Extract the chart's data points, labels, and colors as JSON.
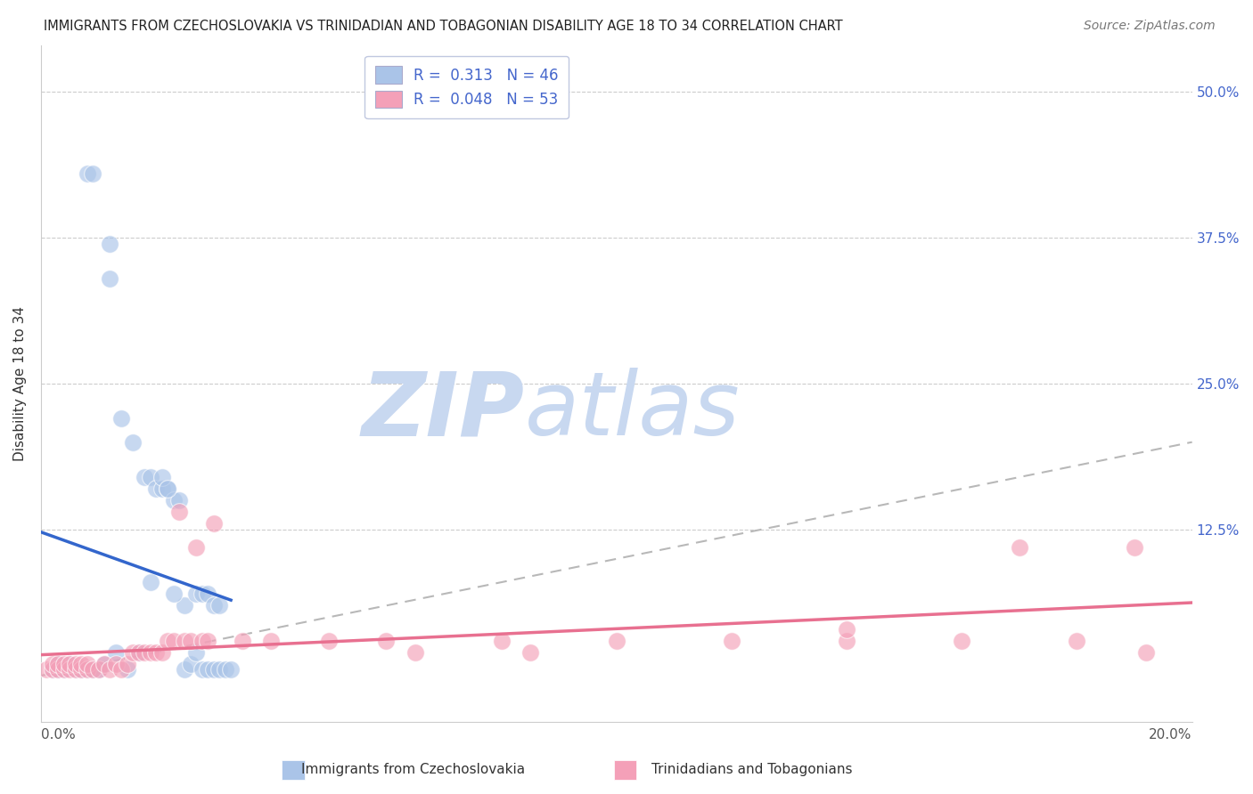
{
  "title": "IMMIGRANTS FROM CZECHOSLOVAKIA VS TRINIDADIAN AND TOBAGONIAN DISABILITY AGE 18 TO 34 CORRELATION CHART",
  "source": "Source: ZipAtlas.com",
  "ylabel": "Disability Age 18 to 34",
  "ytick_labels": [
    "12.5%",
    "25.0%",
    "37.5%",
    "50.0%"
  ],
  "ytick_values": [
    0.125,
    0.25,
    0.375,
    0.5
  ],
  "xlim": [
    0.0,
    0.2
  ],
  "ylim": [
    -0.04,
    0.54
  ],
  "legend_blue_r": "0.313",
  "legend_blue_n": "46",
  "legend_pink_r": "0.048",
  "legend_pink_n": "53",
  "legend_blue_label": "Immigrants from Czechoslovakia",
  "legend_pink_label": "Trinidadians and Tobagonians",
  "blue_color": "#aac4e8",
  "blue_line_color": "#3366cc",
  "pink_color": "#f4a0b8",
  "pink_line_color": "#e87090",
  "diag_line_color": "#b8b8b8",
  "watermark_zip": "ZIP",
  "watermark_atlas": "atlas",
  "watermark_color_zip": "#c8d8f0",
  "watermark_color_atlas": "#c8d8f0",
  "title_fontsize": 10.5,
  "axis_label_fontsize": 11,
  "tick_fontsize": 11,
  "legend_fontsize": 12,
  "source_fontsize": 10,
  "blue_scatter_x": [
    0.008,
    0.009,
    0.012,
    0.012,
    0.014,
    0.016,
    0.018,
    0.019,
    0.02,
    0.021,
    0.022,
    0.023,
    0.024,
    0.025,
    0.027,
    0.028,
    0.029,
    0.03,
    0.031,
    0.002,
    0.003,
    0.003,
    0.004,
    0.005,
    0.006,
    0.007,
    0.008,
    0.009,
    0.01,
    0.011,
    0.013,
    0.015,
    0.017,
    0.019,
    0.021,
    0.022,
    0.023,
    0.025,
    0.026,
    0.027,
    0.028,
    0.029,
    0.03,
    0.031,
    0.032,
    0.033
  ],
  "blue_scatter_y": [
    0.43,
    0.43,
    0.37,
    0.34,
    0.22,
    0.2,
    0.17,
    0.17,
    0.16,
    0.16,
    0.16,
    0.15,
    0.15,
    0.06,
    0.07,
    0.07,
    0.07,
    0.06,
    0.06,
    0.005,
    0.005,
    0.01,
    0.005,
    0.01,
    0.005,
    0.005,
    0.005,
    0.005,
    0.005,
    0.01,
    0.02,
    0.005,
    0.02,
    0.08,
    0.17,
    0.16,
    0.07,
    0.005,
    0.01,
    0.02,
    0.005,
    0.005,
    0.005,
    0.005,
    0.005,
    0.005
  ],
  "pink_scatter_x": [
    0.001,
    0.002,
    0.002,
    0.003,
    0.003,
    0.004,
    0.004,
    0.005,
    0.005,
    0.006,
    0.006,
    0.007,
    0.007,
    0.008,
    0.008,
    0.009,
    0.01,
    0.011,
    0.012,
    0.013,
    0.014,
    0.015,
    0.016,
    0.017,
    0.018,
    0.019,
    0.02,
    0.021,
    0.022,
    0.023,
    0.024,
    0.025,
    0.026,
    0.027,
    0.028,
    0.029,
    0.03,
    0.035,
    0.04,
    0.05,
    0.06,
    0.08,
    0.1,
    0.12,
    0.14,
    0.16,
    0.17,
    0.18,
    0.19,
    0.192,
    0.14,
    0.065,
    0.085
  ],
  "pink_scatter_y": [
    0.005,
    0.005,
    0.01,
    0.005,
    0.01,
    0.005,
    0.01,
    0.005,
    0.01,
    0.005,
    0.01,
    0.005,
    0.01,
    0.005,
    0.01,
    0.005,
    0.005,
    0.01,
    0.005,
    0.01,
    0.005,
    0.01,
    0.02,
    0.02,
    0.02,
    0.02,
    0.02,
    0.02,
    0.03,
    0.03,
    0.14,
    0.03,
    0.03,
    0.11,
    0.03,
    0.03,
    0.13,
    0.03,
    0.03,
    0.03,
    0.03,
    0.03,
    0.03,
    0.03,
    0.03,
    0.03,
    0.11,
    0.03,
    0.11,
    0.02,
    0.04,
    0.02,
    0.02
  ]
}
